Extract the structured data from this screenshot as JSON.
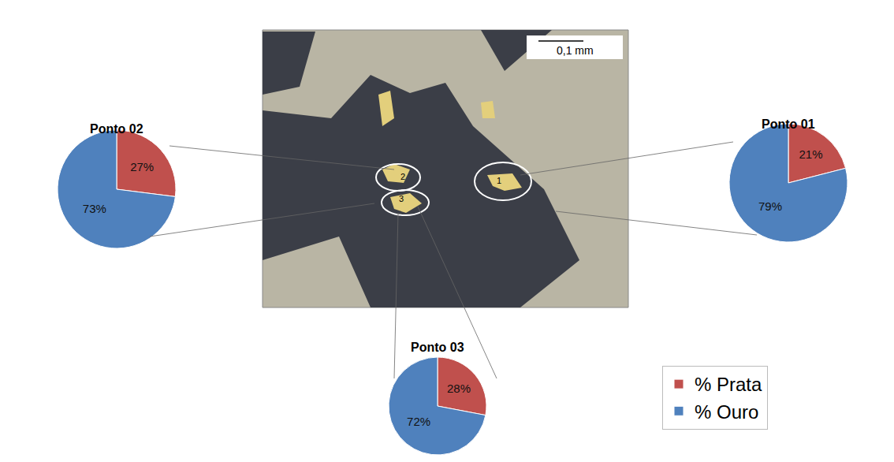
{
  "chart_data": [
    {
      "type": "pie",
      "title": "Ponto 01",
      "categories": [
        "% Prata",
        "% Ouro"
      ],
      "values": [
        21,
        79
      ],
      "value_labels": [
        "21%",
        "79%"
      ],
      "colors": [
        "#c0504d",
        "#4f81bd"
      ],
      "data_labels": true,
      "legend": "lower right"
    },
    {
      "type": "pie",
      "title": "Ponto 02",
      "categories": [
        "% Prata",
        "% Ouro"
      ],
      "values": [
        27,
        73
      ],
      "value_labels": [
        "27%",
        "73%"
      ],
      "colors": [
        "#c0504d",
        "#4f81bd"
      ],
      "data_labels": true,
      "legend": "lower right"
    },
    {
      "type": "pie",
      "title": "Ponto 03",
      "categories": [
        "% Prata",
        "% Ouro"
      ],
      "values": [
        28,
        72
      ],
      "value_labels": [
        "28%",
        "72%"
      ],
      "colors": [
        "#c0504d",
        "#4f81bd"
      ],
      "data_labels": true,
      "legend": "lower right"
    }
  ],
  "micrograph": {
    "scale_bar": "0,1 mm",
    "point_labels": [
      "1",
      "2",
      "3"
    ]
  }
}
